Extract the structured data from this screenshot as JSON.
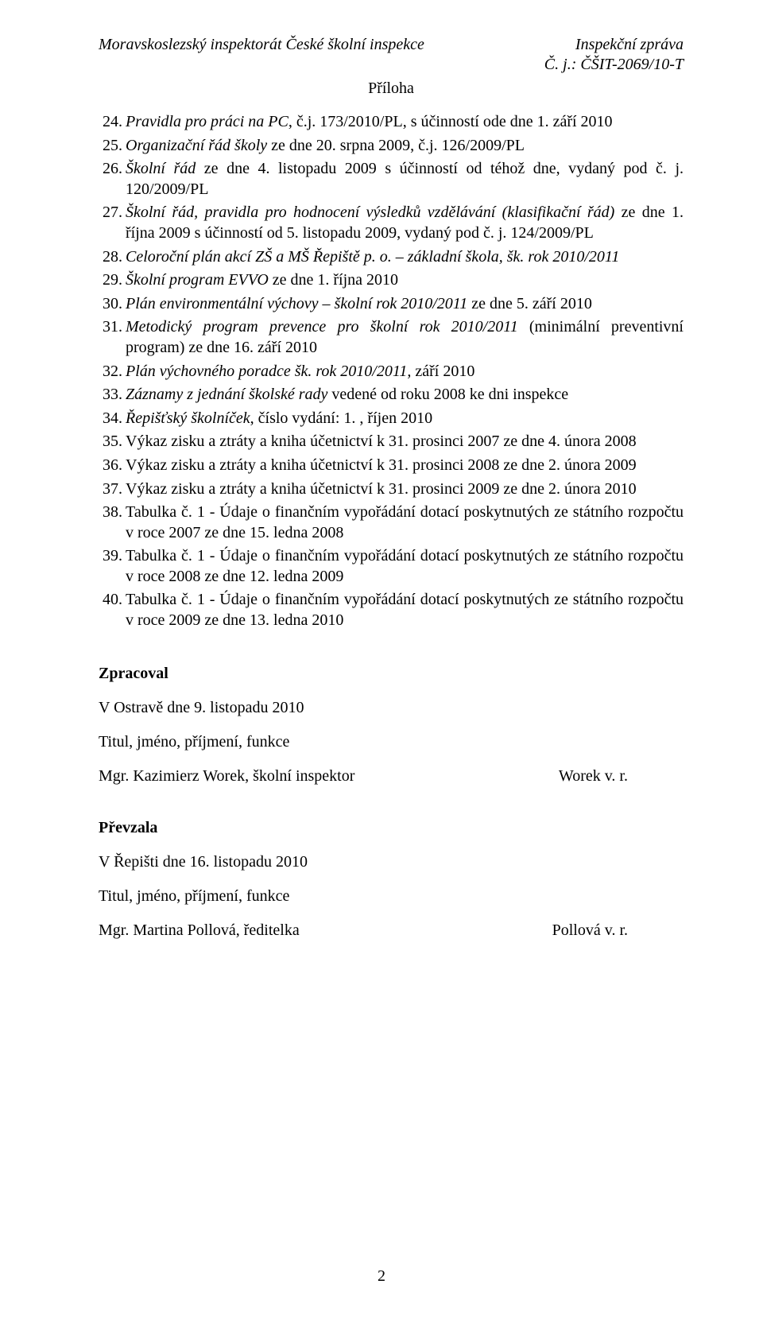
{
  "header": {
    "left": "Moravskoslezský inspektorát České školní inspekce",
    "right1": "Inspekční zpráva",
    "right2": "Č. j.: ČŠIT-2069/10-T"
  },
  "attachment_label": "Příloha",
  "items": [
    {
      "n": "24.",
      "prefix_i": "Pravidla pro práci na PC",
      "rest": ", č.j. 173/2010/PL, s účinností ode dne 1. září 2010"
    },
    {
      "n": "25.",
      "prefix_i": "Organizační řád školy",
      "rest": " ze dne 20. srpna 2009, č.j. 126/2009/PL"
    },
    {
      "n": "26.",
      "prefix_i": "Školní řád",
      "rest": " ze dne 4. listopadu 2009 s účinností od téhož dne, vydaný pod č. j. 120/2009/PL"
    },
    {
      "n": "27.",
      "prefix_i": "Školní řád, pravidla pro hodnocení výsledků vzdělávání (klasifikační řád)",
      "rest": " ze dne 1. října 2009 s účinností od 5. listopadu 2009, vydaný pod č. j. 124/2009/PL"
    },
    {
      "n": "28.",
      "prefix_i": "Celoroční plán akcí ZŠ a MŠ Řepiště p. o. – základní škola, šk. rok 2010/2011",
      "rest": ""
    },
    {
      "n": "29.",
      "prefix_i": "Školní program EVVO",
      "rest": " ze dne 1. října 2010"
    },
    {
      "n": "30.",
      "prefix_i": "Plán environmentální výchovy – školní rok 2010/2011",
      "rest": " ze dne 5. září 2010"
    },
    {
      "n": "31.",
      "prefix_i": "Metodický program prevence pro školní rok 2010/2011",
      "rest": " (minimální preventivní program) ze dne 16. září 2010"
    },
    {
      "n": "32.",
      "prefix_i": "Plán výchovného poradce šk. rok 2010/2011,",
      "rest": " září 2010"
    },
    {
      "n": "33.",
      "prefix_i": "Záznamy z jednání školské rady",
      "rest": " vedené od roku 2008 ke dni inspekce"
    },
    {
      "n": "34.",
      "prefix_i": "Řepišťský školníček",
      "rest": ", číslo vydání: 1. , říjen 2010"
    },
    {
      "n": "35.",
      "prefix_i": "",
      "rest": "Výkaz zisku a ztráty a kniha účetnictví k 31. prosinci 2007 ze dne 4. února 2008"
    },
    {
      "n": "36.",
      "prefix_i": "",
      "rest": "Výkaz zisku a ztráty a kniha účetnictví k 31. prosinci 2008 ze dne 2. února 2009"
    },
    {
      "n": "37.",
      "prefix_i": "",
      "rest": "Výkaz zisku a ztráty a kniha účetnictví k 31. prosinci 2009 ze dne 2. února 2010"
    },
    {
      "n": "38.",
      "prefix_i": "",
      "rest": "Tabulka č. 1 - Údaje o finančním vypořádání dotací poskytnutých ze státního rozpočtu v roce 2007 ze dne 15. ledna 2008"
    },
    {
      "n": "39.",
      "prefix_i": "",
      "rest": "Tabulka č. 1 - Údaje o finančním vypořádání dotací poskytnutých ze státního rozpočtu v roce 2008 ze dne 12. ledna 2009"
    },
    {
      "n": "40.",
      "prefix_i": "",
      "rest": "Tabulka č. 1 - Údaje o finančním vypořádání dotací poskytnutých ze státního rozpočtu v roce 2009 ze dne 13. ledna 2010"
    }
  ],
  "zpracoval": {
    "heading": "Zpracoval",
    "line1": "V Ostravě dne 9. listopadu 2010",
    "line2": "Titul, jméno, příjmení, funkce",
    "name": "Mgr. Kazimierz Worek, školní inspektor",
    "sig": "Worek v. r."
  },
  "prevzala": {
    "heading": "Převzala",
    "line1": "V Řepišti dne 16. listopadu 2010",
    "line2": "Titul, jméno, příjmení, funkce",
    "name": "Mgr. Martina Pollová, ředitelka",
    "sig": "Pollová v. r."
  },
  "page_number": "2"
}
